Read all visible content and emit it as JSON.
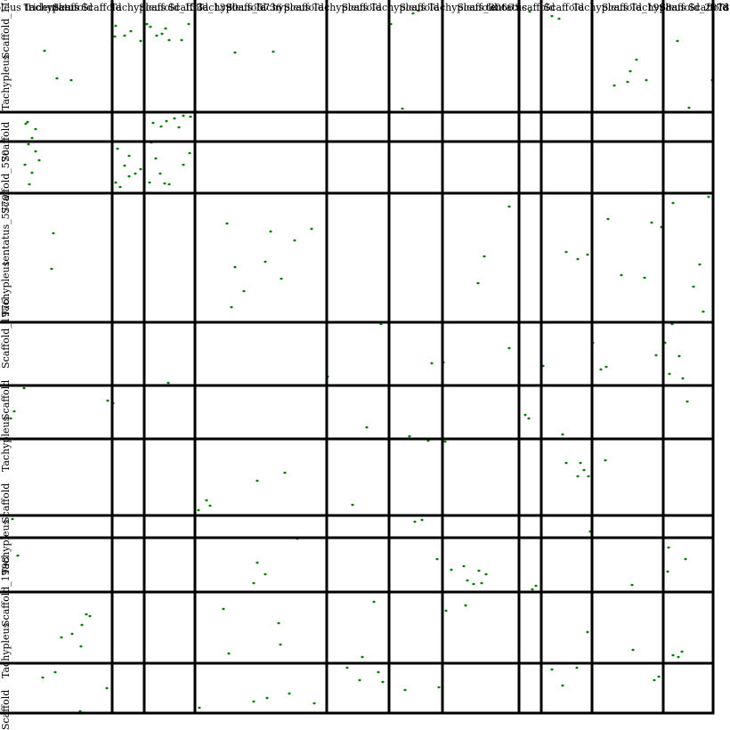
{
  "chart_data": {
    "type": "scatter",
    "title": "",
    "xlabel": "",
    "ylabel": "",
    "grid": true,
    "legend": "none",
    "colors": {
      "points": "#008000",
      "grid": "#000000",
      "text": "#000000"
    },
    "x_axis": {
      "tick_labels": [
        "pleus tridentatus",
        "Tachypleus",
        "Scaffold",
        "Scaffold",
        "Tachypleus",
        "Scaffold_133",
        "Scaffold_1390",
        "Tachypleus_5736",
        "Scaffold",
        "Tachypleus",
        "Scaffold",
        "Tachypleus",
        "Scaffold",
        "Tachypleus",
        "Scaffold",
        "Tachypleus_3066",
        "Scaffold",
        "tentatus",
        "Scaffold",
        "Scaffold",
        "Tachypleus",
        "Scaffold_1998",
        "Tachypleus",
        "Scaffold_2078",
        "Scaffold",
        "Ta"
      ],
      "breaks": [
        0,
        126,
        162,
        219,
        367,
        437,
        497,
        583,
        608,
        665,
        745,
        801
      ]
    },
    "y_axis": {
      "tick_labels": [
        "Scaffold_1160",
        "Tachypleus",
        "Scaffold",
        "Scaffold_570",
        "tentatus_5770",
        "Tachypleus",
        "Scaffold_1976",
        "Scaffold",
        "Tachypleus",
        "Scaffold",
        "Tachypleus",
        "Scaffold_1998",
        "Tachypleus",
        "Scaffold"
      ],
      "breaks": [
        0,
        126,
        159,
        217,
        362,
        433,
        493,
        579,
        604,
        665,
        745,
        801
      ]
    },
    "points": [
      [
        50,
        57
      ],
      [
        64,
        88
      ],
      [
        80,
        90
      ],
      [
        130,
        29
      ],
      [
        140,
        40
      ],
      [
        147,
        35
      ],
      [
        158,
        46
      ],
      [
        129,
        41
      ],
      [
        169,
        30
      ],
      [
        176,
        40
      ],
      [
        182,
        38
      ],
      [
        190,
        45
      ],
      [
        204,
        45
      ],
      [
        212,
        27
      ],
      [
        165,
        27
      ],
      [
        186,
        32
      ],
      [
        264,
        59
      ],
      [
        307,
        58
      ],
      [
        439,
        27
      ],
      [
        464,
        15
      ],
      [
        470,
        12
      ],
      [
        595,
        13
      ],
      [
        620,
        18
      ],
      [
        628,
        21
      ],
      [
        715,
        67
      ],
      [
        708,
        80
      ],
      [
        690,
        96
      ],
      [
        705,
        92
      ],
      [
        726,
        90
      ],
      [
        761,
        46
      ],
      [
        800,
        90
      ],
      [
        774,
        121
      ],
      [
        452,
        122
      ],
      [
        31,
        137
      ],
      [
        40,
        145
      ],
      [
        36,
        155
      ],
      [
        29,
        139
      ],
      [
        172,
        138
      ],
      [
        181,
        142
      ],
      [
        187,
        136
      ],
      [
        196,
        133
      ],
      [
        201,
        143
      ],
      [
        206,
        130
      ],
      [
        214,
        131
      ],
      [
        32,
        162
      ],
      [
        40,
        170
      ],
      [
        28,
        185
      ],
      [
        44,
        180
      ],
      [
        36,
        194
      ],
      [
        33,
        207
      ],
      [
        132,
        167
      ],
      [
        145,
        175
      ],
      [
        140,
        186
      ],
      [
        130,
        205
      ],
      [
        135,
        210
      ],
      [
        145,
        198
      ],
      [
        152,
        195
      ],
      [
        158,
        190
      ],
      [
        175,
        178
      ],
      [
        168,
        205
      ],
      [
        180,
        195
      ],
      [
        185,
        206
      ],
      [
        170,
        160
      ],
      [
        206,
        185
      ],
      [
        213,
        172
      ],
      [
        190,
        207
      ],
      [
        60,
        262
      ],
      [
        58,
        302
      ],
      [
        255,
        251
      ],
      [
        264,
        300
      ],
      [
        304,
        260
      ],
      [
        298,
        294
      ],
      [
        274,
        327
      ],
      [
        331,
        270
      ],
      [
        316,
        313
      ],
      [
        260,
        345
      ],
      [
        350,
        257
      ],
      [
        544,
        288
      ],
      [
        572,
        232
      ],
      [
        537,
        318
      ],
      [
        636,
        283
      ],
      [
        649,
        291
      ],
      [
        660,
        286
      ],
      [
        683,
        246
      ],
      [
        698,
        309
      ],
      [
        732,
        250
      ],
      [
        756,
        228
      ],
      [
        743,
        255
      ],
      [
        796,
        221
      ],
      [
        786,
        297
      ],
      [
        779,
        322
      ],
      [
        790,
        350
      ],
      [
        724,
        312
      ],
      [
        428,
        364
      ],
      [
        485,
        408
      ],
      [
        498,
        407
      ],
      [
        572,
        391
      ],
      [
        610,
        411
      ],
      [
        666,
        385
      ],
      [
        675,
        415
      ],
      [
        681,
        412
      ],
      [
        737,
        399
      ],
      [
        763,
        400
      ],
      [
        752,
        420
      ],
      [
        767,
        425
      ],
      [
        747,
        385
      ],
      [
        772,
        451
      ],
      [
        755,
        364
      ],
      [
        189,
        430
      ],
      [
        182,
        433
      ],
      [
        368,
        423
      ],
      [
        27,
        436
      ],
      [
        121,
        450
      ],
      [
        127,
        453
      ],
      [
        16,
        462
      ],
      [
        12,
        470
      ],
      [
        412,
        480
      ],
      [
        460,
        490
      ],
      [
        481,
        495
      ],
      [
        500,
        496
      ],
      [
        590,
        466
      ],
      [
        594,
        470
      ],
      [
        632,
        488
      ],
      [
        636,
        520
      ],
      [
        652,
        520
      ],
      [
        656,
        528
      ],
      [
        661,
        535
      ],
      [
        649,
        535
      ],
      [
        680,
        517
      ],
      [
        289,
        540
      ],
      [
        320,
        531
      ],
      [
        232,
        562
      ],
      [
        236,
        568
      ],
      [
        223,
        573
      ],
      [
        396,
        567
      ],
      [
        14,
        583
      ],
      [
        466,
        586
      ],
      [
        474,
        584
      ],
      [
        663,
        597
      ],
      [
        415,
        604
      ],
      [
        334,
        605
      ],
      [
        20,
        624
      ],
      [
        491,
        628
      ],
      [
        507,
        640
      ],
      [
        521,
        636
      ],
      [
        538,
        641
      ],
      [
        546,
        645
      ],
      [
        525,
        652
      ],
      [
        532,
        656
      ],
      [
        541,
        655
      ],
      [
        289,
        632
      ],
      [
        298,
        645
      ],
      [
        285,
        655
      ],
      [
        750,
        642
      ],
      [
        770,
        628
      ],
      [
        751,
        615
      ],
      [
        710,
        657
      ],
      [
        602,
        658
      ],
      [
        598,
        662
      ],
      [
        69,
        716
      ],
      [
        81,
        712
      ],
      [
        92,
        702
      ],
      [
        97,
        690
      ],
      [
        101,
        692
      ],
      [
        91,
        726
      ],
      [
        251,
        684
      ],
      [
        313,
        700
      ],
      [
        315,
        724
      ],
      [
        257,
        734
      ],
      [
        420,
        676
      ],
      [
        501,
        686
      ],
      [
        523,
        680
      ],
      [
        660,
        710
      ],
      [
        711,
        730
      ],
      [
        756,
        736
      ],
      [
        762,
        738
      ],
      [
        766,
        732
      ],
      [
        48,
        761
      ],
      [
        62,
        755
      ],
      [
        120,
        773
      ],
      [
        224,
        795
      ],
      [
        285,
        788
      ],
      [
        300,
        784
      ],
      [
        325,
        779
      ],
      [
        353,
        790
      ],
      [
        390,
        750
      ],
      [
        395,
        745
      ],
      [
        407,
        738
      ],
      [
        404,
        764
      ],
      [
        421,
        745
      ],
      [
        425,
        755
      ],
      [
        430,
        766
      ],
      [
        455,
        775
      ],
      [
        493,
        772
      ],
      [
        620,
        752
      ],
      [
        632,
        770
      ],
      [
        648,
        750
      ],
      [
        735,
        764
      ],
      [
        740,
        760
      ],
      [
        90,
        799
      ]
    ]
  }
}
